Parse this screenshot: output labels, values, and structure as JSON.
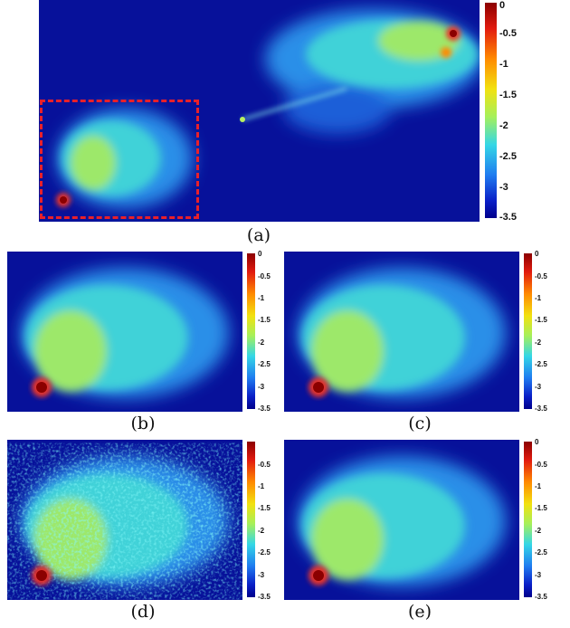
{
  "panels": [
    {
      "id": "a",
      "caption": "(a)",
      "ticks": [
        "0",
        "-0.5",
        "-1",
        "-1.5",
        "-2",
        "-2.5",
        "-3",
        "-3.5"
      ]
    },
    {
      "id": "b",
      "caption": "(b)",
      "ticks": [
        "0",
        "-0.5",
        "-1",
        "-1.5",
        "-2",
        "-2.5",
        "-3",
        "-3.5"
      ]
    },
    {
      "id": "c",
      "caption": "(c)",
      "ticks": [
        "0",
        "-0.5",
        "-1",
        "-1.5",
        "-2",
        "-2.5",
        "-3",
        "-3.5"
      ]
    },
    {
      "id": "d",
      "caption": "(d)",
      "ticks": [
        "-0.5",
        "-1",
        "-1.5",
        "-2",
        "-2.5",
        "-3",
        "-3.5"
      ]
    },
    {
      "id": "e",
      "caption": "(e)",
      "ticks": [
        "0",
        "-0.5",
        "-1",
        "-1.5",
        "-2",
        "-2.5",
        "-3",
        "-3.5"
      ]
    }
  ],
  "colors": {
    "background": "#07119a",
    "highlight_box": "#e8202a"
  }
}
